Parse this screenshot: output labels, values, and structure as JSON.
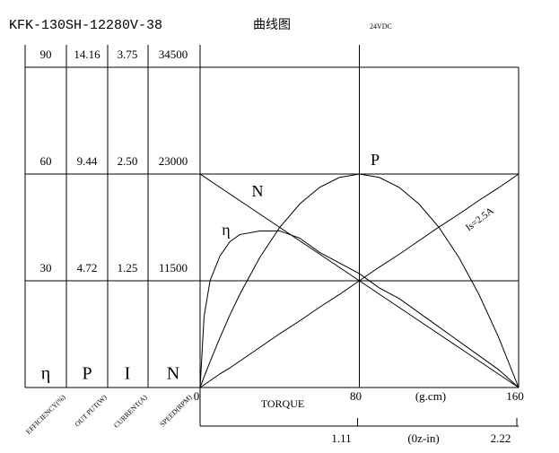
{
  "chart_data": {
    "type": "line",
    "title": "KFK-130SH-12280V-38",
    "subtitle": "曲线图",
    "annotation": "24VDC",
    "x_label": "TORQUE",
    "x_unit": "(g.cm)",
    "x2_unit": "(0z-in)",
    "xlim": [
      0,
      160
    ],
    "xticks": [
      0,
      80,
      160
    ],
    "x2lim": [
      0,
      2.22
    ],
    "x2ticks": [
      1.11,
      2.22
    ],
    "axis_symbols": [
      "η",
      "P",
      "I",
      "N"
    ],
    "axis_labels": [
      "EFFICIENCY(%)",
      "OUT PUT(W)",
      "CURRENT(A)",
      "SPEED(RPM)"
    ],
    "ylim": [
      0,
      90
    ],
    "yticks": [
      30,
      60,
      90
    ],
    "y2lim": [
      0,
      14.16
    ],
    "y2ticks": [
      4.72,
      9.44,
      14.16
    ],
    "y3lim": [
      0,
      3.75
    ],
    "y3ticks": [
      1.25,
      {
        "value": 2.5,
        "label": "2.50"
      },
      3.75
    ],
    "y4lim": [
      0,
      34500
    ],
    "y4ticks": [
      11500,
      23000,
      34500
    ],
    "grid": true,
    "x": [
      0,
      2,
      5,
      10,
      15,
      20,
      30,
      40,
      50,
      60,
      70,
      80,
      90,
      100,
      110,
      120,
      130,
      140,
      150,
      160
    ],
    "series": [
      {
        "name": "η",
        "axis": "y",
        "color": "#000000",
        "values": [
          0,
          20,
          30,
          37,
          41,
          43,
          44,
          44,
          42,
          38,
          35,
          32,
          28,
          25,
          21,
          17,
          13,
          9,
          5,
          0
        ]
      },
      {
        "name": "P",
        "axis": "y2",
        "color": "#000000",
        "values": [
          0,
          0.47,
          1.14,
          2.21,
          3.21,
          4.13,
          5.75,
          7.08,
          8.11,
          8.85,
          9.29,
          9.44,
          9.29,
          8.85,
          8.11,
          7.08,
          5.75,
          4.13,
          2.21,
          0
        ]
      },
      {
        "name": "Is=2.5A",
        "axis": "y3",
        "color": "#000000",
        "values": [
          0,
          0.03,
          0.08,
          0.16,
          0.23,
          0.31,
          0.47,
          0.63,
          0.78,
          0.94,
          1.09,
          1.25,
          1.41,
          1.56,
          1.72,
          1.88,
          2.03,
          2.19,
          2.34,
          2.5
        ]
      },
      {
        "name": "N",
        "axis": "y4",
        "color": "#000000",
        "values": [
          23000,
          22713,
          22281,
          21563,
          20844,
          20125,
          18688,
          17250,
          15813,
          14375,
          12938,
          11500,
          10063,
          8625,
          7188,
          5750,
          4313,
          2875,
          1438,
          0
        ]
      }
    ]
  }
}
